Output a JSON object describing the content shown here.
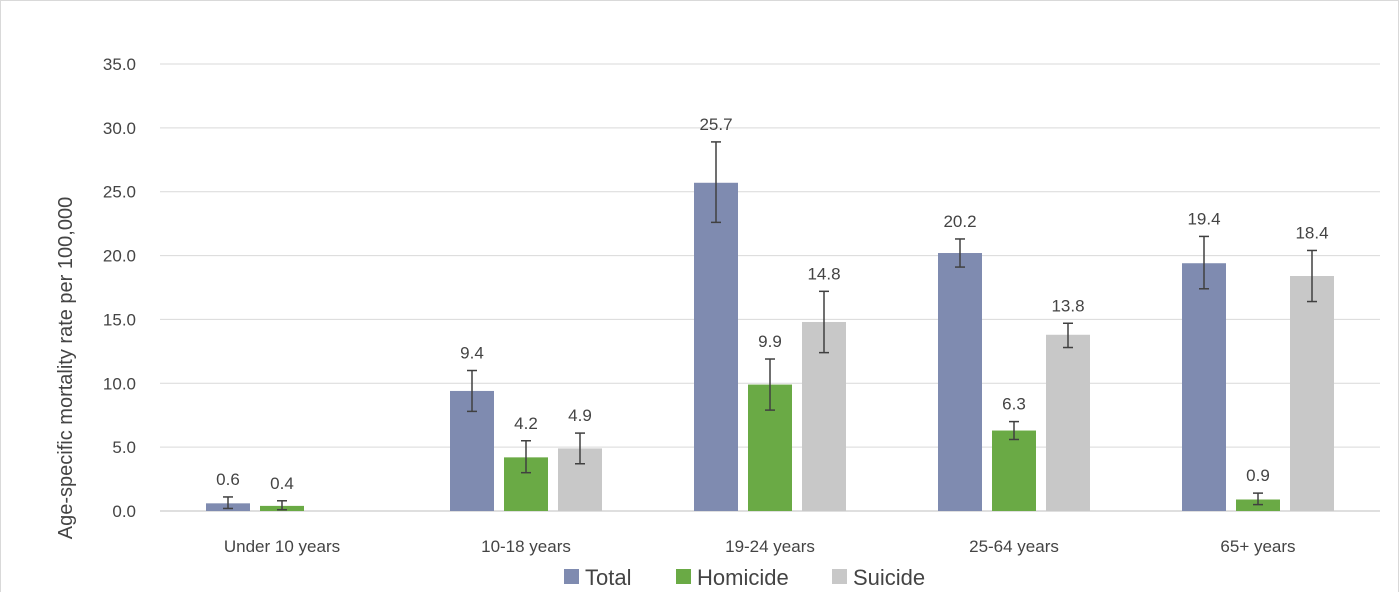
{
  "chart_data": {
    "type": "bar",
    "title": "",
    "xlabel": "",
    "ylabel": "Age-specific mortality rate per 100,000",
    "ylim": [
      0,
      35
    ],
    "yticks": [
      "0.0",
      "5.0",
      "10.0",
      "15.0",
      "20.0",
      "25.0",
      "30.0",
      "35.0"
    ],
    "grid": true,
    "legend_position": "bottom",
    "categories": [
      "Under 10 years",
      "10-18 years",
      "19-24 years",
      "25-64 years",
      "65+ years"
    ],
    "series": [
      {
        "name": "Total",
        "color": "#7f8bb0",
        "values": [
          0.6,
          9.4,
          25.7,
          20.2,
          19.4
        ],
        "labels": [
          "0.6",
          "9.4",
          "25.7",
          "20.2",
          "19.4"
        ],
        "error_low": [
          0.2,
          7.8,
          22.6,
          19.1,
          17.4
        ],
        "error_high": [
          1.1,
          11.0,
          28.9,
          21.3,
          21.5
        ]
      },
      {
        "name": "Homicide",
        "color": "#6aaa45",
        "values": [
          0.4,
          4.2,
          9.9,
          6.3,
          0.9
        ],
        "labels": [
          "0.4",
          "4.2",
          "9.9",
          "6.3",
          "0.9"
        ],
        "error_low": [
          0.1,
          3.0,
          7.9,
          5.6,
          0.5
        ],
        "error_high": [
          0.8,
          5.5,
          11.9,
          7.0,
          1.4
        ]
      },
      {
        "name": "Suicide",
        "color": "#c8c8c8",
        "values": [
          null,
          4.9,
          14.8,
          13.8,
          18.4
        ],
        "labels": [
          "",
          "4.9",
          "14.8",
          "13.8",
          "18.4"
        ],
        "error_low": [
          null,
          3.7,
          12.4,
          12.8,
          16.4
        ],
        "error_high": [
          null,
          6.1,
          17.2,
          14.7,
          20.4
        ]
      }
    ]
  }
}
